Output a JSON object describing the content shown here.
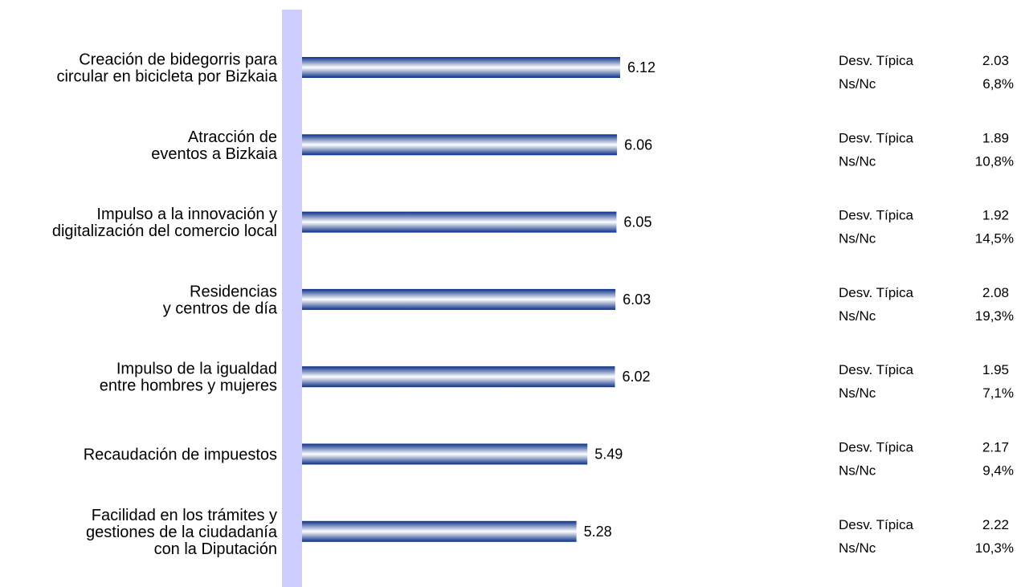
{
  "chart_data": {
    "type": "bar",
    "orientation": "horizontal",
    "categories": [
      [
        "Creación de bidegorris para",
        "circular en bicicleta por Bizkaia"
      ],
      [
        "Atracción de",
        "eventos a Bizkaia"
      ],
      [
        "Impulso a la innovación y",
        "digitalización del comercio local"
      ],
      [
        "Residencias",
        "y centros de día"
      ],
      [
        "Impulso de la igualdad",
        "entre hombres y mujeres"
      ],
      [
        "Recaudación de impuestos"
      ],
      [
        "Facilidad en los trámites y",
        "gestiones de la ciudadanía",
        "con la Diputación"
      ]
    ],
    "values": [
      6.12,
      6.06,
      6.05,
      6.03,
      6.02,
      5.49,
      5.28
    ],
    "value_labels": [
      "6.12",
      "6.06",
      "6.05",
      "6.03",
      "6.02",
      "5.49",
      "5.28"
    ],
    "xlim": [
      0,
      10
    ],
    "grid": false,
    "stats": {
      "std_label": "Desv. Típica",
      "nsnc_label": "Ns/Nc",
      "std_values": [
        "2.03",
        "1.89",
        "1.92",
        "2.08",
        "1.95",
        "2.17",
        "2.22"
      ],
      "nsnc_values": [
        "6,8%",
        "10,8%",
        "14,5%",
        "19,3%",
        "7,1%",
        "9,4%",
        "10,3%"
      ]
    },
    "colors": {
      "bar_dark": "#0a2f87",
      "bar_light": "#ffffff",
      "axis_band": "#ccccff"
    }
  }
}
